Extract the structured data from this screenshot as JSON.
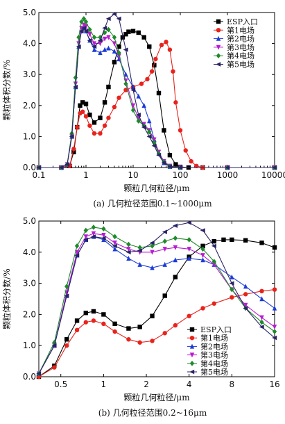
{
  "chart_data": [
    {
      "type": "line",
      "caption": "(a) 几何粒径范围0.1~1000μm",
      "xlabel": "颗粒几何粒径/μm",
      "ylabel": "颗粒体积分数/%",
      "xscale": "log",
      "xlim": [
        0.1,
        10000
      ],
      "ylim": [
        0,
        5
      ],
      "xticks": [
        "0.1",
        "1",
        "10",
        "100",
        "1000",
        "10000"
      ],
      "yticks": [
        "0.0",
        "1.0",
        "2.0",
        "3.0",
        "4.0",
        "5.0"
      ],
      "legend_position": "top-right",
      "series": [
        {
          "name": "ESP入口",
          "color": "#000000",
          "marker": "square",
          "x": [
            0.1,
            0.3,
            0.45,
            0.55,
            0.65,
            0.75,
            0.85,
            1.0,
            1.2,
            1.5,
            2.0,
            2.5,
            3.0,
            4.0,
            5.0,
            6.0,
            7.0,
            8.0,
            10,
            13,
            17,
            22,
            28,
            35,
            45,
            60,
            80,
            100,
            150,
            300,
            1000,
            10000
          ],
          "y": [
            0,
            0,
            0.05,
            0.5,
            1.3,
            2.0,
            2.1,
            2.05,
            1.7,
            1.45,
            1.6,
            2.1,
            2.6,
            3.4,
            3.9,
            4.2,
            4.3,
            4.38,
            4.4,
            4.35,
            4.2,
            3.9,
            3.3,
            2.4,
            1.2,
            0.4,
            0.1,
            0.02,
            0,
            0,
            0,
            0
          ]
        },
        {
          "name": "第1电场",
          "color": "#e8231c",
          "marker": "circle",
          "x": [
            0.1,
            0.3,
            0.45,
            0.55,
            0.65,
            0.75,
            0.85,
            1.0,
            1.2,
            1.5,
            2.0,
            2.5,
            3.0,
            4.0,
            5.0,
            7.0,
            10,
            15,
            20,
            25,
            30,
            40,
            50,
            60,
            70,
            80,
            100,
            130,
            170,
            220,
            300,
            1000,
            10000
          ],
          "y": [
            0,
            0,
            0.05,
            0.6,
            1.3,
            1.75,
            1.8,
            1.65,
            1.35,
            1.1,
            1.1,
            1.35,
            1.6,
            1.95,
            2.25,
            2.5,
            2.6,
            2.7,
            2.85,
            3.1,
            3.5,
            3.95,
            4.05,
            3.8,
            3.1,
            2.1,
            1.2,
            0.55,
            0.2,
            0.05,
            0,
            0,
            0
          ]
        },
        {
          "name": "第2电场",
          "color": "#1c3bd6",
          "marker": "triangle-up",
          "x": [
            0.1,
            0.3,
            0.4,
            0.5,
            0.6,
            0.7,
            0.8,
            0.9,
            1.0,
            1.2,
            1.5,
            2.0,
            2.5,
            3.0,
            4.0,
            5.0,
            7.0,
            10,
            13,
            17,
            22,
            28,
            35,
            45,
            60,
            100,
            1000,
            10000
          ],
          "y": [
            0,
            0,
            0.1,
            1.0,
            2.6,
            3.9,
            4.4,
            4.5,
            4.4,
            4.1,
            3.8,
            3.7,
            3.8,
            3.85,
            3.75,
            3.5,
            3.0,
            2.6,
            2.3,
            2.0,
            1.5,
            0.9,
            0.45,
            0.15,
            0.03,
            0,
            0,
            0
          ]
        },
        {
          "name": "第3电场",
          "color": "#b81cd1",
          "marker": "triangle-down",
          "x": [
            0.1,
            0.3,
            0.4,
            0.5,
            0.6,
            0.7,
            0.8,
            0.9,
            1.0,
            1.2,
            1.5,
            2.0,
            2.5,
            3.0,
            4.0,
            5.0,
            7.0,
            10,
            13,
            17,
            22,
            28,
            35,
            45,
            60,
            100,
            1000,
            10000
          ],
          "y": [
            0,
            0,
            0.1,
            1.0,
            2.7,
            4.0,
            4.5,
            4.6,
            4.55,
            4.3,
            4.0,
            4.0,
            4.15,
            4.2,
            4.0,
            3.6,
            2.8,
            2.0,
            1.6,
            1.4,
            1.2,
            0.9,
            0.5,
            0.2,
            0.05,
            0,
            0,
            0
          ]
        },
        {
          "name": "第4电场",
          "color": "#1f8a2a",
          "marker": "diamond",
          "x": [
            0.1,
            0.3,
            0.4,
            0.5,
            0.6,
            0.7,
            0.8,
            0.9,
            1.0,
            1.2,
            1.5,
            2.0,
            2.5,
            3.0,
            4.0,
            5.0,
            7.0,
            10,
            13,
            17,
            22,
            28,
            35,
            45,
            60,
            100,
            1000,
            10000
          ],
          "y": [
            0,
            0,
            0.1,
            1.1,
            2.9,
            4.2,
            4.7,
            4.8,
            4.7,
            4.45,
            4.2,
            4.2,
            4.35,
            4.45,
            4.2,
            3.7,
            2.7,
            1.85,
            1.5,
            1.35,
            1.15,
            0.8,
            0.45,
            0.18,
            0.04,
            0,
            0,
            0
          ]
        },
        {
          "name": "第5电场",
          "color": "#2a2366",
          "marker": "triangle-left",
          "x": [
            0.1,
            0.3,
            0.4,
            0.5,
            0.6,
            0.7,
            0.8,
            0.9,
            1.0,
            1.2,
            1.5,
            2.0,
            2.5,
            3.0,
            4.0,
            5.0,
            7.0,
            10,
            13,
            17,
            22,
            28,
            35,
            45,
            60,
            100,
            1000,
            10000
          ],
          "y": [
            0,
            0,
            0.1,
            1.0,
            2.6,
            3.9,
            4.4,
            4.5,
            4.4,
            4.1,
            3.9,
            4.1,
            4.5,
            4.8,
            4.95,
            4.8,
            3.8,
            2.5,
            1.7,
            1.3,
            1.0,
            0.7,
            0.4,
            0.15,
            0.03,
            0,
            0,
            0
          ]
        }
      ]
    },
    {
      "type": "line",
      "caption": "(b) 几何粒径范围0.2~16μm",
      "xlabel": "颗粒几何粒径/μm",
      "ylabel": "颗粒体积分数/%",
      "xscale": "log",
      "xlim": [
        0.35,
        16
      ],
      "ylim": [
        0,
        5
      ],
      "xticks": [
        "0.5",
        "1",
        "2",
        "4",
        "8",
        "16"
      ],
      "yticks": [
        "0.0",
        "1.0",
        "2.0",
        "3.0",
        "4.0",
        "5.0"
      ],
      "legend_position": "bottom-right",
      "series": [
        {
          "name": "ESP入口",
          "color": "#000000",
          "marker": "square",
          "x": [
            0.35,
            0.45,
            0.55,
            0.65,
            0.75,
            0.85,
            1.0,
            1.2,
            1.5,
            1.8,
            2.2,
            2.7,
            3.2,
            4.0,
            5.0,
            6.0,
            7.0,
            8.0,
            10,
            13,
            16
          ],
          "y": [
            0,
            0.35,
            1.2,
            1.8,
            2.05,
            2.1,
            2.0,
            1.7,
            1.55,
            1.6,
            1.95,
            2.6,
            3.2,
            3.85,
            4.2,
            4.35,
            4.4,
            4.4,
            4.38,
            4.3,
            4.15
          ]
        },
        {
          "name": "第1电场",
          "color": "#e8231c",
          "marker": "circle",
          "x": [
            0.35,
            0.45,
            0.55,
            0.65,
            0.75,
            0.85,
            1.0,
            1.2,
            1.5,
            1.8,
            2.2,
            2.7,
            3.2,
            4.0,
            5.0,
            6.0,
            8.0,
            10,
            13,
            16
          ],
          "y": [
            0,
            0.3,
            1.0,
            1.5,
            1.75,
            1.8,
            1.7,
            1.45,
            1.2,
            1.1,
            1.15,
            1.4,
            1.65,
            1.95,
            2.2,
            2.35,
            2.55,
            2.65,
            2.75,
            2.8
          ]
        },
        {
          "name": "第2电场",
          "color": "#1c3bd6",
          "marker": "triangle-up",
          "x": [
            0.35,
            0.45,
            0.55,
            0.65,
            0.75,
            0.85,
            1.0,
            1.2,
            1.5,
            1.8,
            2.2,
            2.7,
            3.2,
            4.0,
            5.0,
            6.0,
            8.0,
            10,
            13,
            16
          ],
          "y": [
            0.1,
            1.0,
            2.6,
            3.9,
            4.4,
            4.5,
            4.4,
            4.1,
            3.8,
            3.6,
            3.5,
            3.6,
            3.75,
            3.8,
            3.75,
            3.6,
            3.2,
            2.9,
            2.5,
            2.2
          ]
        },
        {
          "name": "第3电场",
          "color": "#b81cd1",
          "marker": "triangle-down",
          "x": [
            0.35,
            0.45,
            0.55,
            0.65,
            0.75,
            0.85,
            1.0,
            1.2,
            1.5,
            1.8,
            2.2,
            2.7,
            3.2,
            4.0,
            5.0,
            6.0,
            8.0,
            10,
            13,
            16
          ],
          "y": [
            0.1,
            1.0,
            2.7,
            4.0,
            4.5,
            4.6,
            4.55,
            4.3,
            4.1,
            4.0,
            4.0,
            4.1,
            4.15,
            4.1,
            3.9,
            3.6,
            2.8,
            2.3,
            1.9,
            1.6
          ]
        },
        {
          "name": "第4电场",
          "color": "#1f8a2a",
          "marker": "diamond",
          "x": [
            0.35,
            0.45,
            0.55,
            0.65,
            0.75,
            0.85,
            1.0,
            1.2,
            1.5,
            1.8,
            2.2,
            2.7,
            3.2,
            4.0,
            5.0,
            6.0,
            8.0,
            10,
            13,
            16
          ],
          "y": [
            0.1,
            1.1,
            2.9,
            4.2,
            4.7,
            4.8,
            4.75,
            4.5,
            4.25,
            4.15,
            4.2,
            4.35,
            4.45,
            4.4,
            4.1,
            3.7,
            2.8,
            2.2,
            1.75,
            1.45
          ]
        },
        {
          "name": "第5电场",
          "color": "#2a2366",
          "marker": "triangle-left",
          "x": [
            0.35,
            0.45,
            0.55,
            0.65,
            0.75,
            0.85,
            1.0,
            1.2,
            1.5,
            1.8,
            2.2,
            2.7,
            3.2,
            4.0,
            5.0,
            6.0,
            8.0,
            10,
            13,
            16
          ],
          "y": [
            0.1,
            1.0,
            2.6,
            3.9,
            4.4,
            4.5,
            4.45,
            4.2,
            4.0,
            4.05,
            4.3,
            4.65,
            4.85,
            4.95,
            4.7,
            4.2,
            3.0,
            2.2,
            1.6,
            1.25
          ]
        }
      ]
    }
  ]
}
